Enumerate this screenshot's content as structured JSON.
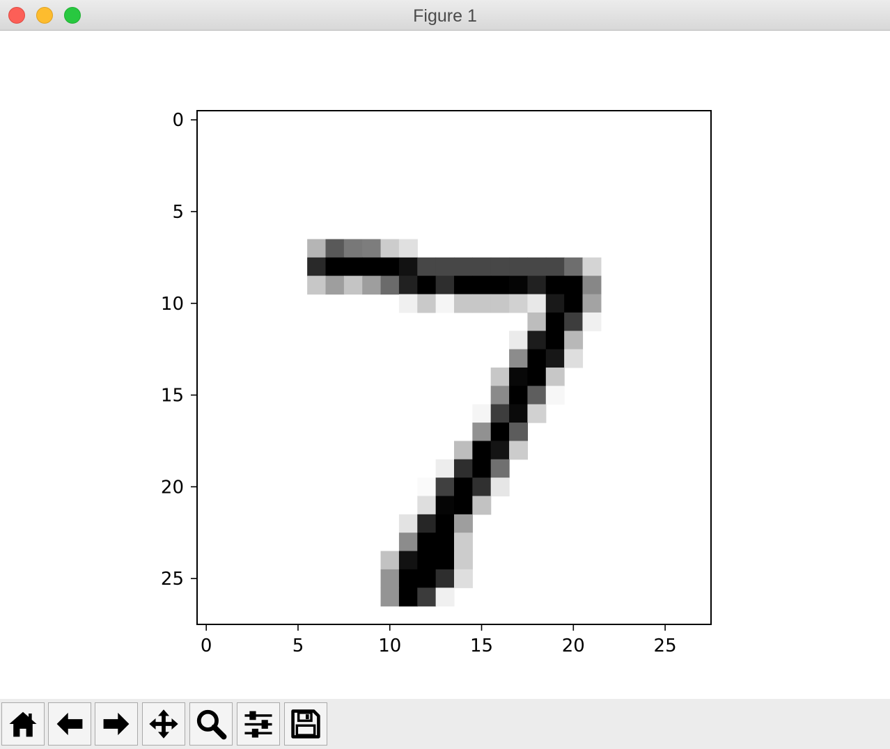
{
  "window": {
    "title": "Figure 1"
  },
  "toolbar": {
    "buttons": [
      {
        "icon": "home-icon"
      },
      {
        "icon": "back-arrow-icon"
      },
      {
        "icon": "forward-arrow-icon"
      },
      {
        "icon": "pan-move-icon"
      },
      {
        "icon": "zoom-magnifier-icon"
      },
      {
        "icon": "configure-subplots-icon"
      },
      {
        "icon": "save-floppy-icon"
      }
    ]
  },
  "chart_data": {
    "type": "heatmap",
    "colormap": "gray_r",
    "title": "",
    "xlabel": "",
    "ylabel": "",
    "xlim": [
      -0.5,
      27.5
    ],
    "ylim": [
      27.5,
      -0.5
    ],
    "x_ticks": [
      0,
      5,
      10,
      15,
      20,
      25
    ],
    "y_ticks": [
      0,
      5,
      10,
      15,
      20,
      25
    ],
    "x_tick_labels": [
      "0",
      "5",
      "10",
      "15",
      "20",
      "25"
    ],
    "y_tick_labels": [
      "0",
      "5",
      "10",
      "15",
      "20",
      "25"
    ],
    "grid": false,
    "rows": 28,
    "cols": 28,
    "pixels": [
      {
        "r": 7,
        "c": 6,
        "v": 0.29
      },
      {
        "r": 7,
        "c": 7,
        "v": 0.65
      },
      {
        "r": 7,
        "c": 8,
        "v": 0.53
      },
      {
        "r": 7,
        "c": 9,
        "v": 0.51
      },
      {
        "r": 7,
        "c": 10,
        "v": 0.2
      },
      {
        "r": 7,
        "c": 11,
        "v": 0.12
      },
      {
        "r": 8,
        "c": 6,
        "v": 0.84
      },
      {
        "r": 8,
        "c": 7,
        "v": 1.0
      },
      {
        "r": 8,
        "c": 8,
        "v": 1.0
      },
      {
        "r": 8,
        "c": 9,
        "v": 1.0
      },
      {
        "r": 8,
        "c": 10,
        "v": 1.0
      },
      {
        "r": 8,
        "c": 11,
        "v": 0.93
      },
      {
        "r": 8,
        "c": 12,
        "v": 0.72
      },
      {
        "r": 8,
        "c": 13,
        "v": 0.72
      },
      {
        "r": 8,
        "c": 14,
        "v": 0.72
      },
      {
        "r": 8,
        "c": 15,
        "v": 0.72
      },
      {
        "r": 8,
        "c": 16,
        "v": 0.72
      },
      {
        "r": 8,
        "c": 17,
        "v": 0.72
      },
      {
        "r": 8,
        "c": 18,
        "v": 0.72
      },
      {
        "r": 8,
        "c": 19,
        "v": 0.72
      },
      {
        "r": 8,
        "c": 20,
        "v": 0.57
      },
      {
        "r": 8,
        "c": 21,
        "v": 0.17
      },
      {
        "r": 9,
        "c": 6,
        "v": 0.22
      },
      {
        "r": 9,
        "c": 7,
        "v": 0.38
      },
      {
        "r": 9,
        "c": 8,
        "v": 0.23
      },
      {
        "r": 9,
        "c": 9,
        "v": 0.38
      },
      {
        "r": 9,
        "c": 10,
        "v": 0.58
      },
      {
        "r": 9,
        "c": 11,
        "v": 0.87
      },
      {
        "r": 9,
        "c": 12,
        "v": 1.0
      },
      {
        "r": 9,
        "c": 13,
        "v": 0.82
      },
      {
        "r": 9,
        "c": 14,
        "v": 1.0
      },
      {
        "r": 9,
        "c": 15,
        "v": 1.0
      },
      {
        "r": 9,
        "c": 16,
        "v": 1.0
      },
      {
        "r": 9,
        "c": 17,
        "v": 0.98
      },
      {
        "r": 9,
        "c": 18,
        "v": 0.87
      },
      {
        "r": 9,
        "c": 19,
        "v": 1.0
      },
      {
        "r": 9,
        "c": 20,
        "v": 1.0
      },
      {
        "r": 9,
        "c": 21,
        "v": 0.47
      },
      {
        "r": 10,
        "c": 11,
        "v": 0.06
      },
      {
        "r": 10,
        "c": 12,
        "v": 0.21
      },
      {
        "r": 10,
        "c": 13,
        "v": 0.04
      },
      {
        "r": 10,
        "c": 14,
        "v": 0.22
      },
      {
        "r": 10,
        "c": 15,
        "v": 0.22
      },
      {
        "r": 10,
        "c": 16,
        "v": 0.22
      },
      {
        "r": 10,
        "c": 17,
        "v": 0.18
      },
      {
        "r": 10,
        "c": 18,
        "v": 0.09
      },
      {
        "r": 10,
        "c": 19,
        "v": 0.9
      },
      {
        "r": 10,
        "c": 20,
        "v": 1.0
      },
      {
        "r": 10,
        "c": 21,
        "v": 0.36
      },
      {
        "r": 11,
        "c": 18,
        "v": 0.26
      },
      {
        "r": 11,
        "c": 19,
        "v": 1.0
      },
      {
        "r": 11,
        "c": 20,
        "v": 0.76
      },
      {
        "r": 11,
        "c": 21,
        "v": 0.06
      },
      {
        "r": 12,
        "c": 17,
        "v": 0.08
      },
      {
        "r": 12,
        "c": 18,
        "v": 0.89
      },
      {
        "r": 12,
        "c": 19,
        "v": 1.0
      },
      {
        "r": 12,
        "c": 20,
        "v": 0.28
      },
      {
        "r": 13,
        "c": 17,
        "v": 0.45
      },
      {
        "r": 13,
        "c": 18,
        "v": 1.0
      },
      {
        "r": 13,
        "c": 19,
        "v": 0.91
      },
      {
        "r": 13,
        "c": 20,
        "v": 0.13
      },
      {
        "r": 14,
        "c": 16,
        "v": 0.22
      },
      {
        "r": 14,
        "c": 17,
        "v": 0.97
      },
      {
        "r": 14,
        "c": 18,
        "v": 1.0
      },
      {
        "r": 14,
        "c": 19,
        "v": 0.22
      },
      {
        "r": 15,
        "c": 16,
        "v": 0.46
      },
      {
        "r": 15,
        "c": 17,
        "v": 1.0
      },
      {
        "r": 15,
        "c": 18,
        "v": 0.63
      },
      {
        "r": 15,
        "c": 19,
        "v": 0.03
      },
      {
        "r": 16,
        "c": 15,
        "v": 0.04
      },
      {
        "r": 16,
        "c": 16,
        "v": 0.76
      },
      {
        "r": 16,
        "c": 17,
        "v": 0.96
      },
      {
        "r": 16,
        "c": 18,
        "v": 0.18
      },
      {
        "r": 17,
        "c": 15,
        "v": 0.43
      },
      {
        "r": 17,
        "c": 16,
        "v": 1.0
      },
      {
        "r": 17,
        "c": 17,
        "v": 0.64
      },
      {
        "r": 18,
        "c": 14,
        "v": 0.26
      },
      {
        "r": 18,
        "c": 15,
        "v": 1.0
      },
      {
        "r": 18,
        "c": 16,
        "v": 0.92
      },
      {
        "r": 18,
        "c": 17,
        "v": 0.2
      },
      {
        "r": 19,
        "c": 13,
        "v": 0.07
      },
      {
        "r": 19,
        "c": 14,
        "v": 0.82
      },
      {
        "r": 19,
        "c": 15,
        "v": 1.0
      },
      {
        "r": 19,
        "c": 16,
        "v": 0.56
      },
      {
        "r": 20,
        "c": 12,
        "v": 0.02
      },
      {
        "r": 20,
        "c": 13,
        "v": 0.75
      },
      {
        "r": 20,
        "c": 14,
        "v": 1.0
      },
      {
        "r": 20,
        "c": 15,
        "v": 0.81
      },
      {
        "r": 20,
        "c": 16,
        "v": 0.1
      },
      {
        "r": 21,
        "c": 12,
        "v": 0.13
      },
      {
        "r": 21,
        "c": 13,
        "v": 0.98
      },
      {
        "r": 21,
        "c": 14,
        "v": 1.0
      },
      {
        "r": 21,
        "c": 15,
        "v": 0.24
      },
      {
        "r": 22,
        "c": 11,
        "v": 0.11
      },
      {
        "r": 22,
        "c": 12,
        "v": 0.85
      },
      {
        "r": 22,
        "c": 13,
        "v": 1.0
      },
      {
        "r": 22,
        "c": 14,
        "v": 0.38
      },
      {
        "r": 23,
        "c": 11,
        "v": 0.45
      },
      {
        "r": 23,
        "c": 12,
        "v": 1.0
      },
      {
        "r": 23,
        "c": 13,
        "v": 1.0
      },
      {
        "r": 23,
        "c": 14,
        "v": 0.2
      },
      {
        "r": 24,
        "c": 10,
        "v": 0.24
      },
      {
        "r": 24,
        "c": 11,
        "v": 0.93
      },
      {
        "r": 24,
        "c": 12,
        "v": 1.0
      },
      {
        "r": 24,
        "c": 13,
        "v": 1.0
      },
      {
        "r": 24,
        "c": 14,
        "v": 0.2
      },
      {
        "r": 25,
        "c": 10,
        "v": 0.42
      },
      {
        "r": 25,
        "c": 11,
        "v": 1.0
      },
      {
        "r": 25,
        "c": 12,
        "v": 1.0
      },
      {
        "r": 25,
        "c": 13,
        "v": 0.82
      },
      {
        "r": 25,
        "c": 14,
        "v": 0.13
      },
      {
        "r": 26,
        "c": 10,
        "v": 0.42
      },
      {
        "r": 26,
        "c": 11,
        "v": 1.0
      },
      {
        "r": 26,
        "c": 12,
        "v": 0.77
      },
      {
        "r": 26,
        "c": 13,
        "v": 0.06
      }
    ]
  }
}
